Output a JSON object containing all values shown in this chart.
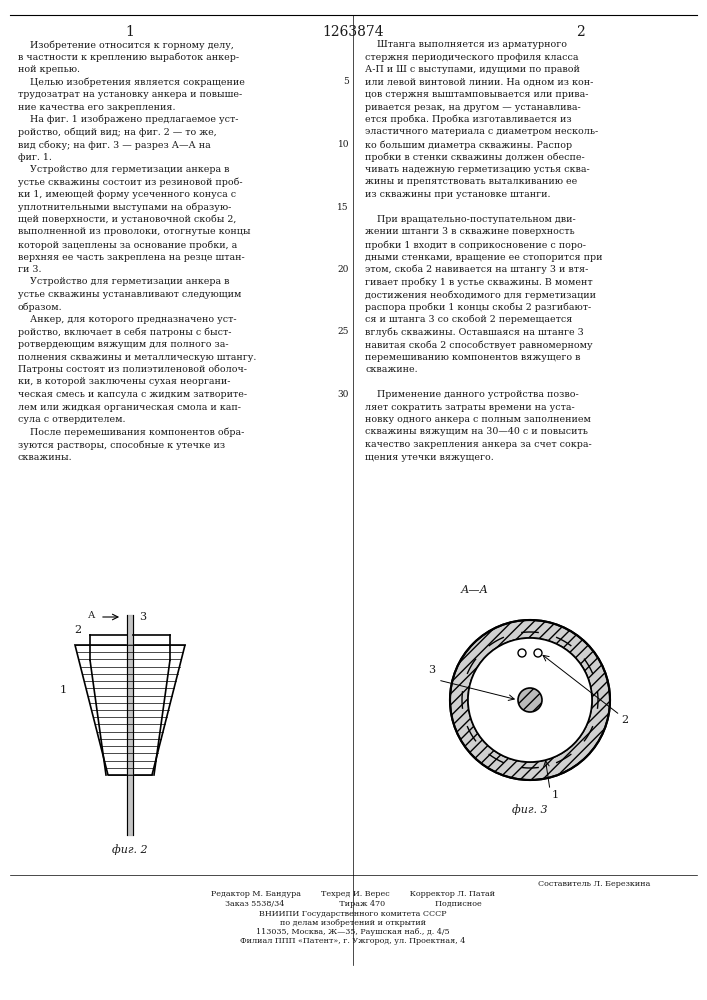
{
  "patent_number": "1263874",
  "page_left": "1",
  "page_right": "2",
  "background_color": "#ffffff",
  "text_color": "#1a1a1a",
  "left_column_text": [
    "    Изобретение относится к горному делу,",
    "в частности к креплению выработок анкер-",
    "ной крепью.",
    "    Целью изобретения является сокращение",
    "трудозатрат на установку анкера и повыше-",
    "ние качества его закрепления.",
    "    На фиг. 1 изображено предлагаемое уст-",
    "ройство, общий вид; на фиг. 2 — то же,",
    "вид сбоку; на фиг. 3 — разрез А—А на",
    "фиг. 1.",
    "    Устройство для герметизации анкера в",
    "устье скважины состоит из резиновой проб-",
    "ки 1, имеющей форму усеченного конуса с",
    "уплотнительными выступами на образую-",
    "щей поверхности, и установочной скобы 2,",
    "выполненной из проволоки, отогнутые концы",
    "которой зацеплены за основание пробки, а",
    "верхняя ее часть закреплена на резце штан-",
    "ги 3.",
    "    Устройство для герметизации анкера в",
    "устье скважины устанавливают следующим",
    "образом.",
    "    Анкер, для которого предназначено уст-",
    "ройство, включает в себя патроны с быст-",
    "ротвердеющим вяжущим для полного за-",
    "полнения скважины и металлическую штангу.",
    "Патроны состоят из полиэтиленовой оболоч-",
    "ки, в которой заключены сухая неоргани-",
    "ческая смесь и капсула с жидким затворите-",
    "лем или жидкая органическая смола и кап-",
    "сула с отвердителем.",
    "    После перемешивания компонентов обра-",
    "зуются растворы, способные к утечке из",
    "скважины."
  ],
  "right_column_text": [
    "    Штанга выполняется из арматурного",
    "стержня периодического профиля класса",
    "А-П и Ш с выступами, идущими по правой",
    "или левой винтовой линии. На одном из кон-",
    "цов стержня выштамповывается или прива-",
    "ривается резак, на другом — устанавлива-",
    "ется пробка. Пробка изготавливается из",
    "эластичного материала с диаметром несколь-",
    "ко большим диаметра скважины. Распор",
    "пробки в стенки скважины должен обеспе-",
    "чивать надежную герметизацию устья сква-",
    "жины и препятствовать выталкиванию ее",
    "из скважины при установке штанги.",
    "",
    "    При вращательно-поступательном дви-",
    "жении штанги 3 в скважине поверхность",
    "пробки 1 входит в соприкосновение с поро-",
    "дными стенками, вращение ее стопорится при",
    "этом, скоба 2 навивается на штангу 3 и втя-",
    "гивает пробку 1 в устье скважины. В момент",
    "достижения необходимого для герметизации",
    "распора пробки 1 концы скобы 2 разгибают-",
    "ся и штанга 3 со скобой 2 перемещается",
    "вглубь скважины. Оставшаяся на штанге 3",
    "навитая скоба 2 способствует равномерному",
    "перемешиванию компонентов вяжущего в",
    "скважине.",
    "",
    "    Применение данного устройства позво-",
    "ляет сократить затраты времени на уста-",
    "новку одного анкера с полным заполнением",
    "скважины вяжущим на 30—40 с и повысить",
    "качество закрепления анкера за счет сокра-",
    "щения утечки вяжущего."
  ],
  "line_numbers": [
    5,
    10,
    15,
    20,
    25,
    30
  ],
  "footer_text": [
    "Составитель Л. Березкина",
    "Редактор М. Бандура        Техред И. Верес        Корректор Л. Патай",
    "Заказ 5538/34                      Тираж 470                    Подписное",
    "ВНИИПИ Государственного комитета СССР",
    "по делам изобретений и открытий",
    "113035, Москва, Ж—35, Раушская наб., д. 4/5",
    "Филиал ППП «Патент», г. Ужгород, ул. Проектная, 4"
  ],
  "fig2_label": "фиг. 2",
  "fig3_label": "фиг. 3",
  "fig3_section_label": "А—А"
}
